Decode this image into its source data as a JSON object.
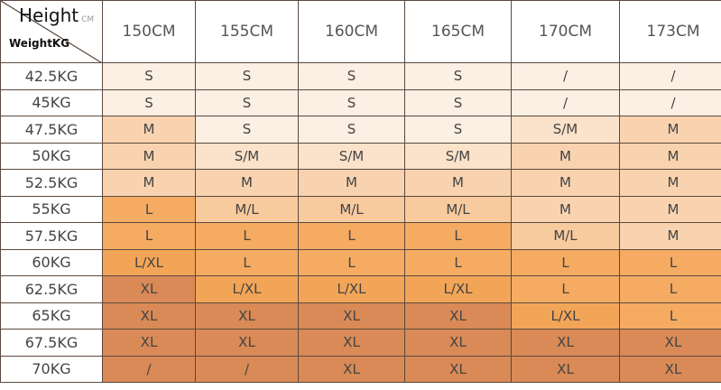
{
  "corner": {
    "height_label": "Height",
    "height_unit": "CM",
    "weight_label": "WeightKG"
  },
  "heights": [
    "150CM",
    "155CM",
    "160CM",
    "165CM",
    "170CM",
    "173CM"
  ],
  "rows": [
    {
      "weight": "42.5KG",
      "sizes": [
        "S",
        "S",
        "S",
        "S",
        "/",
        "/"
      ]
    },
    {
      "weight": "45KG",
      "sizes": [
        "S",
        "S",
        "S",
        "S",
        "/",
        "/"
      ]
    },
    {
      "weight": "47.5KG",
      "sizes": [
        "M",
        "S",
        "S",
        "S",
        "S/M",
        "M"
      ]
    },
    {
      "weight": "50KG",
      "sizes": [
        "M",
        "S/M",
        "S/M",
        "S/M",
        "M",
        "M"
      ]
    },
    {
      "weight": "52.5KG",
      "sizes": [
        "M",
        "M",
        "M",
        "M",
        "M",
        "M"
      ]
    },
    {
      "weight": "55KG",
      "sizes": [
        "L",
        "M/L",
        "M/L",
        "M/L",
        "M",
        "M"
      ]
    },
    {
      "weight": "57.5KG",
      "sizes": [
        "L",
        "L",
        "L",
        "L",
        "M/L",
        "M"
      ]
    },
    {
      "weight": "60KG",
      "sizes": [
        "L/XL",
        "L",
        "L",
        "L",
        "L",
        "L"
      ]
    },
    {
      "weight": "62.5KG",
      "sizes": [
        "XL",
        "L/XL",
        "L/XL",
        "L/XL",
        "L",
        "L"
      ]
    },
    {
      "weight": "65KG",
      "sizes": [
        "XL",
        "XL",
        "XL",
        "XL",
        "L/XL",
        "L"
      ]
    },
    {
      "weight": "67.5KG",
      "sizes": [
        "XL",
        "XL",
        "XL",
        "XL",
        "XL",
        "XL"
      ]
    },
    {
      "weight": "70KG",
      "sizes": [
        "/",
        "/",
        "XL",
        "XL",
        "XL",
        "XL"
      ]
    }
  ],
  "size_colors": {
    "S": "#fcefe3",
    "S/M": "#fbe2ca",
    "M": "#f9d3af",
    "M/L": "#f8cb9e",
    "L": "#f5ab62",
    "L/XL": "#f3a557",
    "XL": "#d98a56"
  }
}
